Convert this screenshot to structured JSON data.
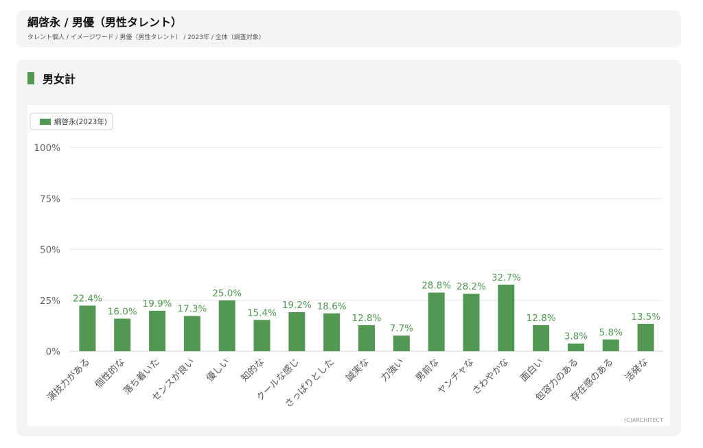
{
  "header": {
    "title": "綱啓永 / 男優（男性タレント）",
    "breadcrumb": "タレント個人 / イメージワード / 男優（男性タレント） / 2023年 / 全体（調査対象）"
  },
  "section": {
    "title": "男女計"
  },
  "legend": {
    "label": "綱啓永(2023年)"
  },
  "credit": "(C)ARCHITECT",
  "colors": {
    "bar": "#529852",
    "label": "#4e9a4e",
    "grid": "#e5e5e5",
    "axis_text": "#666666"
  },
  "chart_data": {
    "type": "bar",
    "title": "男女計",
    "categories": [
      "演技力がある",
      "個性的な",
      "落ち着いた",
      "センスが良い",
      "優しい",
      "知的な",
      "クールな感じ",
      "さっぱりとした",
      "誠実な",
      "力強い",
      "男前な",
      "ヤンチャな",
      "さわやかな",
      "面白い",
      "包容力のある",
      "存在感のある",
      "活発な"
    ],
    "series": [
      {
        "name": "綱啓永(2023年)",
        "values": [
          22.4,
          16.0,
          19.9,
          17.3,
          25.0,
          15.4,
          19.2,
          18.6,
          12.8,
          7.7,
          28.8,
          28.2,
          32.7,
          12.8,
          3.8,
          5.8,
          13.5
        ]
      }
    ],
    "ylim": [
      0,
      100
    ],
    "yticks": [
      0,
      25,
      50,
      75,
      100
    ],
    "ytick_labels": [
      "0%",
      "25%",
      "50%",
      "75%",
      "100%"
    ],
    "value_labels": [
      "22.4%",
      "16.0%",
      "19.9%",
      "17.3%",
      "25.0%",
      "15.4%",
      "19.2%",
      "18.6%",
      "12.8%",
      "7.7%",
      "28.8%",
      "28.2%",
      "32.7%",
      "12.8%",
      "3.8%",
      "5.8%",
      "13.5%"
    ],
    "grid": true,
    "legend_position": "top-left"
  }
}
